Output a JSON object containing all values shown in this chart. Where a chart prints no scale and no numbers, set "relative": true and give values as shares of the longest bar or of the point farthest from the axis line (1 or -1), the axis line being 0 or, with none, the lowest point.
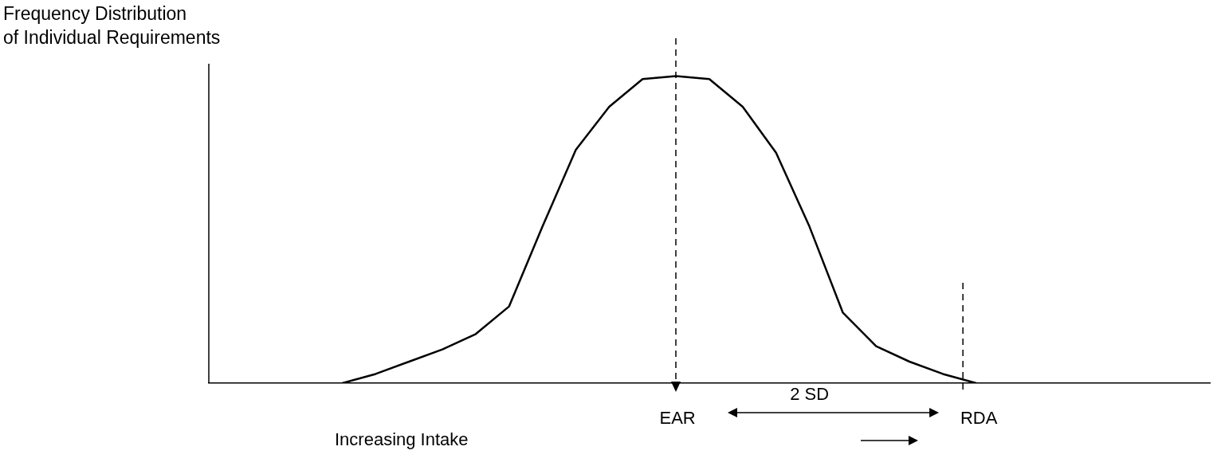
{
  "chart_data": {
    "type": "line",
    "relative": true,
    "ylabel": "Frequency Distribution\nof Individual Requirements",
    "xlabel": "Increasing Intake",
    "categories": [
      null,
      null,
      null,
      null,
      null,
      null,
      null,
      null,
      null,
      null,
      null,
      null,
      null,
      null,
      null,
      null,
      null,
      null,
      null,
      null,
      null,
      null,
      null,
      null,
      null,
      null,
      null,
      null,
      null,
      null,
      null
    ],
    "series": [
      {
        "color": "#000000",
        "values": [
          null,
          null,
          null,
          null,
          0,
          0.03,
          0.07,
          0.11,
          0.16,
          0.25,
          0.51,
          0.76,
          0.9,
          0.99,
          1,
          0.99,
          0.9,
          0.75,
          0.51,
          0.23,
          0.12,
          0.07,
          0.03,
          0,
          null,
          null,
          null,
          null,
          null,
          null,
          null
        ]
      }
    ],
    "annotations": [
      "EAR",
      "2 SD",
      "RDA"
    ],
    "marker": "none",
    "line_style": "solid",
    "grid": false,
    "legend": false,
    "tick_labels": false
  }
}
